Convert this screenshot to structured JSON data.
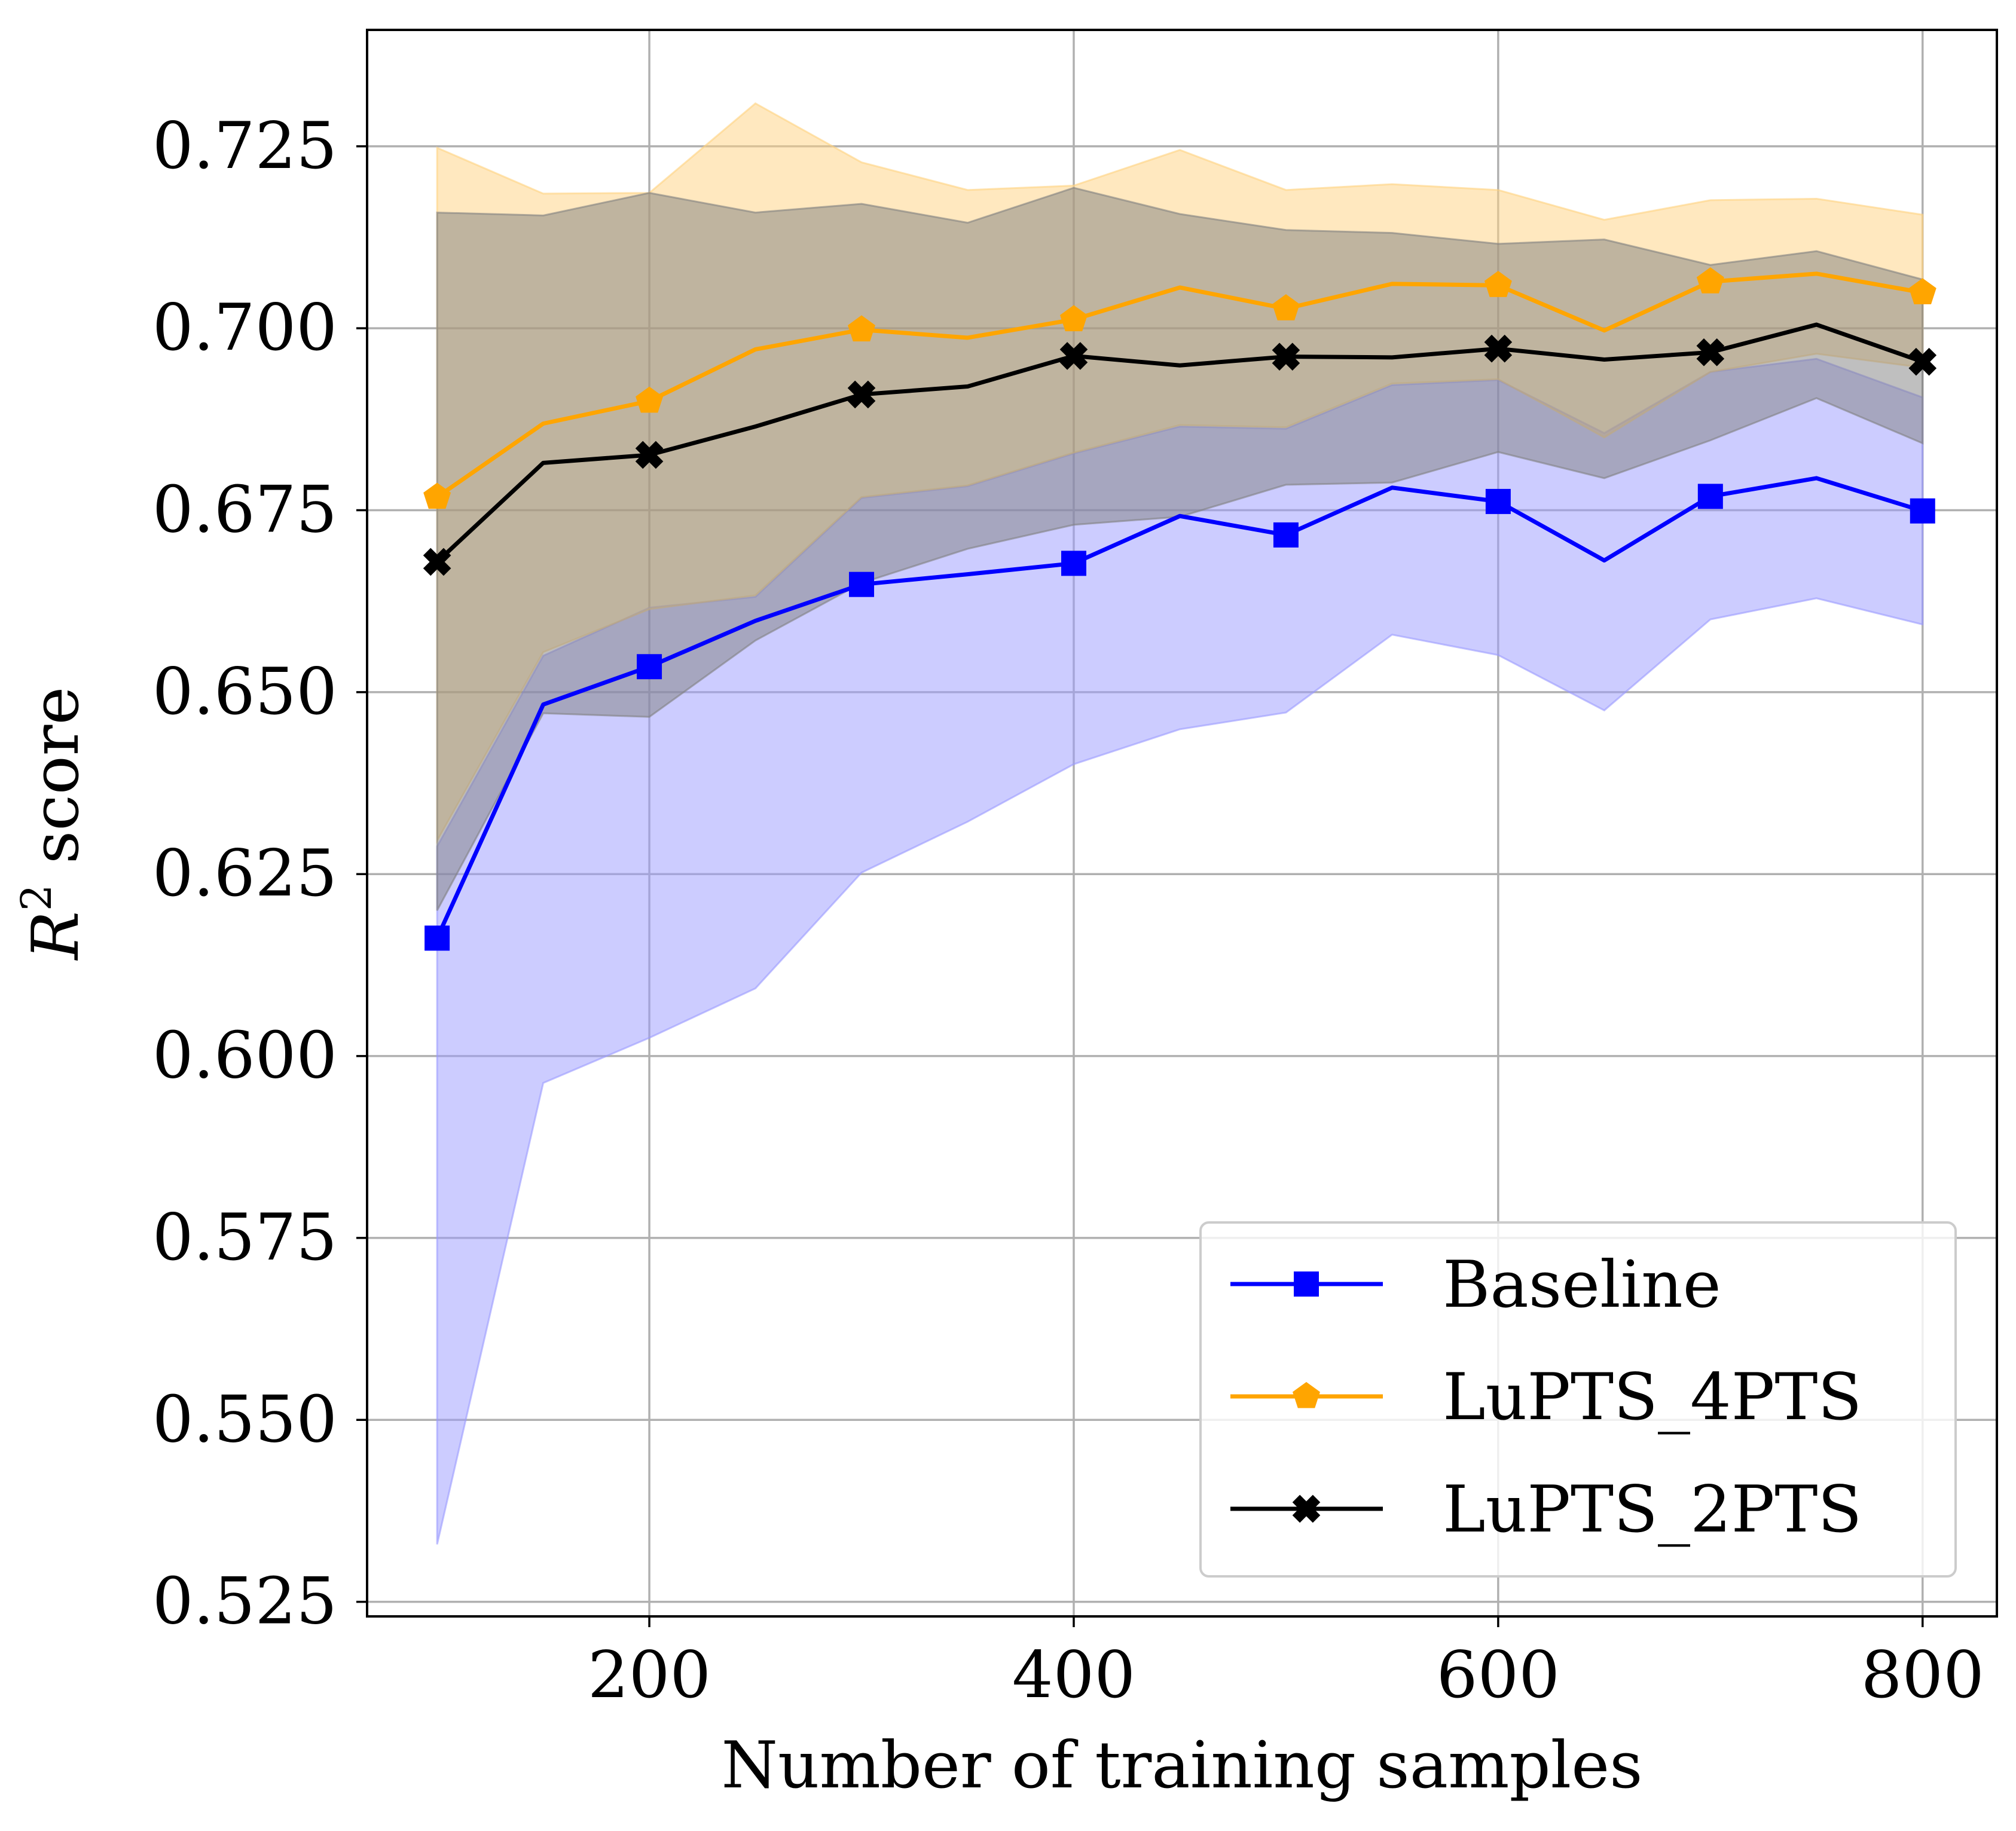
{
  "chart_data": {
    "type": "line",
    "xlabel": "Number of training samples",
    "ylabel_main": "R",
    "ylabel_sup": "2",
    "ylabel_rest": " score",
    "xlim": [
      67,
      835
    ],
    "ylim": [
      0.523,
      0.741
    ],
    "xticks": [
      200,
      400,
      600,
      800
    ],
    "xtick_labels": [
      "200",
      "400",
      "600",
      "800"
    ],
    "yticks": [
      0.525,
      0.55,
      0.575,
      0.6,
      0.625,
      0.65,
      0.675,
      0.7,
      0.725
    ],
    "ytick_labels": [
      "0.525",
      "0.550",
      "0.575",
      "0.600",
      "0.625",
      "0.650",
      "0.675",
      "0.700",
      "0.725"
    ],
    "grid": true,
    "legend_position": "lower-right",
    "x": [
      100,
      150,
      200,
      250,
      300,
      350,
      400,
      450,
      500,
      550,
      600,
      650,
      700,
      750,
      800
    ],
    "series": [
      {
        "name": "Baseline",
        "color": "#0000ff",
        "band_color": "#9999ff",
        "marker": "square",
        "values": [
          0.6162,
          0.6483,
          0.6535,
          0.6598,
          0.6648,
          0.6662,
          0.6677,
          0.6742,
          0.6716,
          0.6781,
          0.6762,
          0.6681,
          0.6769,
          0.6794,
          0.6749
        ],
        "lower": [
          0.5329,
          0.5963,
          0.6025,
          0.6093,
          0.6252,
          0.6322,
          0.6401,
          0.6449,
          0.6472,
          0.6579,
          0.6551,
          0.6475,
          0.66,
          0.6629,
          0.6593
        ],
        "upper": [
          0.6288,
          0.655,
          0.6616,
          0.6631,
          0.6767,
          0.6783,
          0.6828,
          0.6865,
          0.6862,
          0.6922,
          0.6929,
          0.6856,
          0.694,
          0.6958,
          0.6905
        ]
      },
      {
        "name": "LuPTS_4PTS",
        "color": "#ffa500",
        "band_color": "#ffd27f",
        "marker": "pentagon",
        "values": [
          0.6768,
          0.6869,
          0.69,
          0.6971,
          0.6998,
          0.6987,
          0.7012,
          0.7056,
          0.7027,
          0.7061,
          0.7059,
          0.6997,
          0.7064,
          0.7075,
          0.7049
        ],
        "lower": [
          0.6296,
          0.6555,
          0.6614,
          0.6633,
          0.6768,
          0.6784,
          0.6829,
          0.6867,
          0.6864,
          0.6924,
          0.693,
          0.685,
          0.694,
          0.6965,
          0.6946
        ],
        "upper": [
          0.7248,
          0.7185,
          0.7186,
          0.7309,
          0.7228,
          0.719,
          0.7196,
          0.7245,
          0.719,
          0.7198,
          0.719,
          0.7149,
          0.7176,
          0.7178,
          0.7156
        ]
      },
      {
        "name": "LuPTS_2PTS",
        "color": "#000000",
        "band_color": "#808080",
        "marker": "x-filled",
        "values": [
          0.6679,
          0.6815,
          0.6826,
          0.6865,
          0.6909,
          0.692,
          0.6962,
          0.6949,
          0.6961,
          0.696,
          0.6972,
          0.6957,
          0.6967,
          0.7005,
          0.6954
        ],
        "lower": [
          0.62,
          0.6471,
          0.6466,
          0.6571,
          0.665,
          0.6697,
          0.673,
          0.6741,
          0.6785,
          0.6788,
          0.683,
          0.6794,
          0.6846,
          0.6904,
          0.6842
        ],
        "upper": [
          0.7159,
          0.7155,
          0.7186,
          0.7159,
          0.7171,
          0.7145,
          0.7193,
          0.7157,
          0.7135,
          0.7131,
          0.7116,
          0.7122,
          0.7087,
          0.7106,
          0.7067
        ]
      }
    ]
  }
}
